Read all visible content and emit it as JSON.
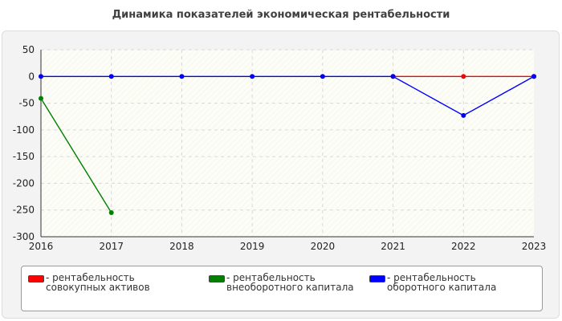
{
  "chart_data": {
    "type": "line",
    "title": "Динамика показателей экономическая рентабельности",
    "x": [
      "2016",
      "2017",
      "2018",
      "2019",
      "2020",
      "2021",
      "2022",
      "2023"
    ],
    "ylim": [
      -300,
      50
    ],
    "yticks": [
      "50",
      "0",
      "-50",
      "-100",
      "-150",
      "-200",
      "-250",
      "-300"
    ],
    "grid": true,
    "legend_position": "bottom",
    "series": [
      {
        "name": "- рентабельность совокупных активов",
        "color": "#ff0000",
        "values": [
          null,
          null,
          null,
          null,
          null,
          0,
          0,
          0
        ]
      },
      {
        "name": "- рентабельность внеоборотного капитала",
        "color": "#008000",
        "values": [
          -41,
          -255,
          null,
          null,
          null,
          null,
          null,
          null
        ]
      },
      {
        "name": "- рентабельность оборотного капитала",
        "color": "#0000ff",
        "values": [
          0,
          0,
          0,
          0,
          0,
          0,
          -73,
          0
        ]
      }
    ]
  }
}
